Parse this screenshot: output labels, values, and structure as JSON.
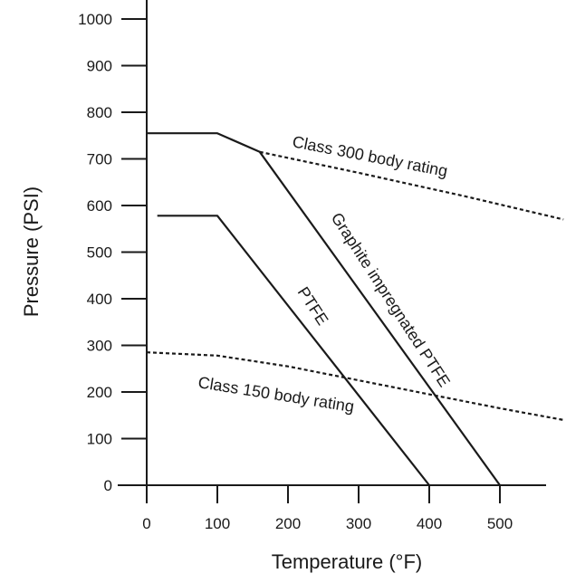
{
  "chart_data": {
    "type": "line",
    "xlabel": "Temperature (°F)",
    "ylabel": "Pressure (PSI)",
    "xlim": [
      0,
      600
    ],
    "ylim": [
      0,
      1000
    ],
    "x_ticks": [
      0,
      100,
      200,
      300,
      400,
      500
    ],
    "x_tick_labels": [
      "0",
      "100",
      "200",
      "300",
      "400",
      "500"
    ],
    "y_ticks": [
      0,
      100,
      200,
      300,
      400,
      500,
      600,
      700,
      800,
      900,
      1000
    ],
    "y_tick_labels": [
      "0",
      "100",
      "200",
      "300",
      "400",
      "500",
      "600",
      "700",
      "800",
      "900",
      "1000"
    ],
    "grid": false,
    "series": [
      {
        "key": "graphite",
        "name": "Graphite impregnated PTFE",
        "style": "solid",
        "color": "#1a1a1a",
        "points": [
          [
            0,
            755
          ],
          [
            100,
            755
          ],
          [
            160,
            715
          ],
          [
            500,
            0
          ]
        ]
      },
      {
        "key": "ptfe",
        "name": "PTFE",
        "style": "solid",
        "color": "#1a1a1a",
        "points": [
          [
            15,
            578
          ],
          [
            100,
            578
          ],
          [
            400,
            0
          ]
        ]
      },
      {
        "key": "class300",
        "name": "Class 300 body rating",
        "style": "dashed",
        "color": "#1a1a1a",
        "points": [
          [
            160,
            715
          ],
          [
            300,
            670
          ],
          [
            450,
            620
          ],
          [
            590,
            570
          ]
        ]
      },
      {
        "key": "class150",
        "name": "Class 150 body rating",
        "style": "dashed",
        "color": "#1a1a1a",
        "points": [
          [
            0,
            285
          ],
          [
            100,
            278
          ],
          [
            200,
            255
          ],
          [
            300,
            225
          ],
          [
            400,
            195
          ],
          [
            500,
            165
          ],
          [
            590,
            140
          ]
        ]
      }
    ]
  }
}
